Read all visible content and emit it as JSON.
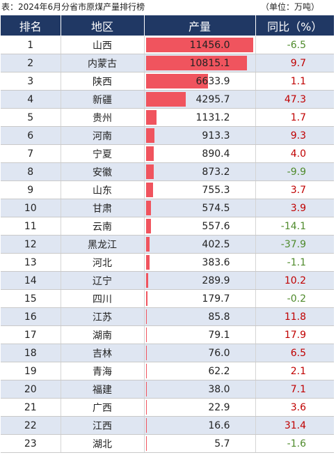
{
  "caption": {
    "title": "表：2024年6月分省市原煤产量排行榜",
    "unit": "（单位：万吨）"
  },
  "headers": {
    "rank": "排名",
    "region": "地区",
    "production": "产量",
    "yoy": "同比（%）"
  },
  "colors": {
    "header_bg": "#203864",
    "bar": "#f0545e",
    "positive": "#c00000",
    "negative": "#4e8a2b",
    "stripe": "#dfe6f2"
  },
  "rows": [
    {
      "rank": "1",
      "region": "山西",
      "production": "11456.0",
      "yoy": "-6.5"
    },
    {
      "rank": "2",
      "region": "内蒙古",
      "production": "10815.1",
      "yoy": "9.7"
    },
    {
      "rank": "3",
      "region": "陕西",
      "production": "6633.9",
      "yoy": "1.1"
    },
    {
      "rank": "4",
      "region": "新疆",
      "production": "4295.7",
      "yoy": "47.3"
    },
    {
      "rank": "5",
      "region": "贵州",
      "production": "1131.2",
      "yoy": "1.7"
    },
    {
      "rank": "6",
      "region": "河南",
      "production": "913.3",
      "yoy": "9.3"
    },
    {
      "rank": "7",
      "region": "宁夏",
      "production": "890.4",
      "yoy": "4.0"
    },
    {
      "rank": "8",
      "region": "安徽",
      "production": "873.2",
      "yoy": "-9.9"
    },
    {
      "rank": "9",
      "region": "山东",
      "production": "755.3",
      "yoy": "3.7"
    },
    {
      "rank": "10",
      "region": "甘肃",
      "production": "574.5",
      "yoy": "3.9"
    },
    {
      "rank": "11",
      "region": "云南",
      "production": "557.6",
      "yoy": "-14.1"
    },
    {
      "rank": "12",
      "region": "黑龙江",
      "production": "402.5",
      "yoy": "-37.9"
    },
    {
      "rank": "13",
      "region": "河北",
      "production": "383.6",
      "yoy": "-1.1"
    },
    {
      "rank": "14",
      "region": "辽宁",
      "production": "289.9",
      "yoy": "10.2"
    },
    {
      "rank": "15",
      "region": "四川",
      "production": "179.7",
      "yoy": "-0.2"
    },
    {
      "rank": "16",
      "region": "江苏",
      "production": "85.8",
      "yoy": "11.8"
    },
    {
      "rank": "17",
      "region": "湖南",
      "production": "79.1",
      "yoy": "17.9"
    },
    {
      "rank": "18",
      "region": "吉林",
      "production": "76.0",
      "yoy": "6.5"
    },
    {
      "rank": "19",
      "region": "青海",
      "production": "62.2",
      "yoy": "2.1"
    },
    {
      "rank": "20",
      "region": "福建",
      "production": "38.0",
      "yoy": "7.1"
    },
    {
      "rank": "21",
      "region": "广西",
      "production": "22.9",
      "yoy": "3.6"
    },
    {
      "rank": "22",
      "region": "江西",
      "production": "16.6",
      "yoy": "31.4"
    },
    {
      "rank": "23",
      "region": "湖北",
      "production": "5.7",
      "yoy": "-1.6"
    }
  ]
}
